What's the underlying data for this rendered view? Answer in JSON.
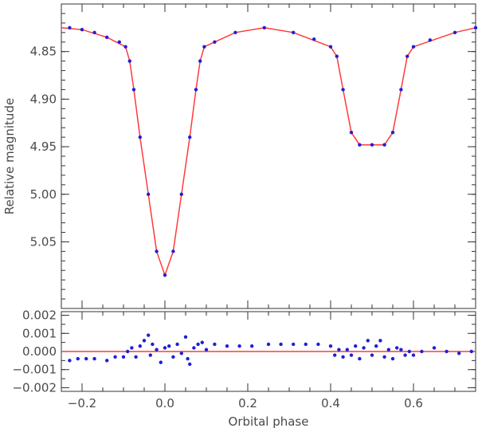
{
  "chart_data": [
    {
      "type": "line",
      "panel": "top",
      "title": "",
      "xlabel": "",
      "ylabel": "Relative magnitude",
      "xlim": [
        -0.25,
        0.75
      ],
      "ylim": [
        5.12,
        4.8
      ],
      "y_inverted": true,
      "x_ticks": [
        -0.2,
        0.0,
        0.2,
        0.4,
        0.6
      ],
      "y_ticks": [
        4.85,
        4.9,
        4.95,
        5.0,
        5.05
      ],
      "y_tick_labels": [
        "4.85",
        "4.90",
        "4.95",
        "5.00",
        "5.05"
      ],
      "series": [
        {
          "kind": "observations",
          "marker": "dot",
          "points": [
            [
              -0.23,
              4.825
            ],
            [
              -0.2,
              4.827
            ],
            [
              -0.17,
              4.83
            ],
            [
              -0.14,
              4.835
            ],
            [
              -0.11,
              4.84
            ],
            [
              -0.095,
              4.845
            ],
            [
              -0.085,
              4.86
            ],
            [
              -0.075,
              4.89
            ],
            [
              -0.06,
              4.94
            ],
            [
              -0.04,
              5.0
            ],
            [
              -0.02,
              5.06
            ],
            [
              0.0,
              5.085
            ],
            [
              0.02,
              5.06
            ],
            [
              0.04,
              5.0
            ],
            [
              0.06,
              4.94
            ],
            [
              0.075,
              4.89
            ],
            [
              0.085,
              4.86
            ],
            [
              0.095,
              4.845
            ],
            [
              0.12,
              4.84
            ],
            [
              0.17,
              4.83
            ],
            [
              0.24,
              4.825
            ],
            [
              0.31,
              4.83
            ],
            [
              0.36,
              4.837
            ],
            [
              0.4,
              4.845
            ],
            [
              0.415,
              4.855
            ],
            [
              0.43,
              4.89
            ],
            [
              0.45,
              4.935
            ],
            [
              0.47,
              4.948
            ],
            [
              0.5,
              4.948
            ],
            [
              0.53,
              4.948
            ],
            [
              0.55,
              4.935
            ],
            [
              0.57,
              4.89
            ],
            [
              0.585,
              4.855
            ],
            [
              0.6,
              4.845
            ],
            [
              0.64,
              4.838
            ],
            [
              0.7,
              4.83
            ],
            [
              0.75,
              4.825
            ]
          ]
        },
        {
          "kind": "model",
          "points": [
            [
              -0.25,
              4.825
            ],
            [
              -0.2,
              4.827
            ],
            [
              -0.14,
              4.835
            ],
            [
              -0.095,
              4.845
            ],
            [
              -0.085,
              4.86
            ],
            [
              -0.075,
              4.89
            ],
            [
              -0.06,
              4.94
            ],
            [
              -0.04,
              5.0
            ],
            [
              -0.02,
              5.06
            ],
            [
              0.0,
              5.085
            ],
            [
              0.02,
              5.06
            ],
            [
              0.04,
              5.0
            ],
            [
              0.06,
              4.94
            ],
            [
              0.075,
              4.89
            ],
            [
              0.085,
              4.86
            ],
            [
              0.095,
              4.845
            ],
            [
              0.17,
              4.83
            ],
            [
              0.24,
              4.825
            ],
            [
              0.31,
              4.83
            ],
            [
              0.4,
              4.845
            ],
            [
              0.415,
              4.855
            ],
            [
              0.43,
              4.89
            ],
            [
              0.45,
              4.935
            ],
            [
              0.47,
              4.948
            ],
            [
              0.53,
              4.948
            ],
            [
              0.55,
              4.935
            ],
            [
              0.57,
              4.89
            ],
            [
              0.585,
              4.855
            ],
            [
              0.6,
              4.845
            ],
            [
              0.7,
              4.83
            ],
            [
              0.75,
              4.825
            ]
          ]
        }
      ],
      "colors": {
        "points": "#1f1fd6",
        "model": "#ff3b3b"
      }
    },
    {
      "type": "scatter",
      "panel": "bottom",
      "xlabel": "Orbital phase",
      "ylabel": "",
      "xlim": [
        -0.25,
        0.75
      ],
      "ylim": [
        -0.0022,
        0.0022
      ],
      "x_ticks": [
        -0.2,
        0.0,
        0.2,
        0.4,
        0.6
      ],
      "x_tick_labels": [
        "−0.2",
        "0.0",
        "0.2",
        "0.4",
        "0.6"
      ],
      "y_ticks": [
        0.002,
        0.001,
        0.0,
        -0.001,
        -0.002
      ],
      "y_tick_labels": [
        "0.002",
        "0.001",
        "0.000",
        "−0.001",
        "−0.002"
      ],
      "reference_line_y": 0.0,
      "series": [
        {
          "kind": "residuals",
          "points": [
            [
              -0.23,
              -0.0005
            ],
            [
              -0.21,
              -0.0004
            ],
            [
              -0.19,
              -0.0004
            ],
            [
              -0.17,
              -0.0004
            ],
            [
              -0.14,
              -0.0005
            ],
            [
              -0.12,
              -0.0003
            ],
            [
              -0.1,
              -0.0003
            ],
            [
              -0.09,
              0.0
            ],
            [
              -0.08,
              0.0002
            ],
            [
              -0.07,
              -0.0003
            ],
            [
              -0.06,
              0.0003
            ],
            [
              -0.05,
              0.0006
            ],
            [
              -0.04,
              0.0009
            ],
            [
              -0.035,
              -0.0002
            ],
            [
              -0.03,
              0.0004
            ],
            [
              -0.02,
              0.0001
            ],
            [
              -0.01,
              -0.0006
            ],
            [
              0.0,
              0.0002
            ],
            [
              0.01,
              0.0003
            ],
            [
              0.02,
              -0.0003
            ],
            [
              0.03,
              0.0004
            ],
            [
              0.04,
              -0.0001
            ],
            [
              0.05,
              0.0008
            ],
            [
              0.055,
              -0.0004
            ],
            [
              0.06,
              -0.0007
            ],
            [
              0.07,
              0.0002
            ],
            [
              0.08,
              0.0004
            ],
            [
              0.09,
              0.0005
            ],
            [
              0.1,
              0.0001
            ],
            [
              0.12,
              0.0004
            ],
            [
              0.15,
              0.0003
            ],
            [
              0.18,
              0.0003
            ],
            [
              0.21,
              0.0003
            ],
            [
              0.25,
              0.0004
            ],
            [
              0.28,
              0.0004
            ],
            [
              0.31,
              0.0004
            ],
            [
              0.34,
              0.0004
            ],
            [
              0.37,
              0.0004
            ],
            [
              0.4,
              0.0003
            ],
            [
              0.41,
              -0.0002
            ],
            [
              0.42,
              0.0001
            ],
            [
              0.43,
              -0.0003
            ],
            [
              0.44,
              0.0001
            ],
            [
              0.45,
              -0.0002
            ],
            [
              0.46,
              0.0003
            ],
            [
              0.47,
              -0.0004
            ],
            [
              0.48,
              0.0002
            ],
            [
              0.49,
              0.0006
            ],
            [
              0.5,
              -0.0002
            ],
            [
              0.51,
              0.0003
            ],
            [
              0.52,
              0.0006
            ],
            [
              0.53,
              -0.0003
            ],
            [
              0.54,
              0.0001
            ],
            [
              0.55,
              -0.0004
            ],
            [
              0.56,
              0.0002
            ],
            [
              0.57,
              0.0001
            ],
            [
              0.58,
              -0.0002
            ],
            [
              0.59,
              0.0
            ],
            [
              0.6,
              -0.0002
            ],
            [
              0.62,
              0.0
            ],
            [
              0.65,
              0.0002
            ],
            [
              0.68,
              0.0
            ],
            [
              0.71,
              -0.0001
            ],
            [
              0.74,
              0.0
            ]
          ]
        }
      ],
      "colors": {
        "points": "#1f1fd6",
        "reference": "#ff3b3b"
      }
    }
  ]
}
